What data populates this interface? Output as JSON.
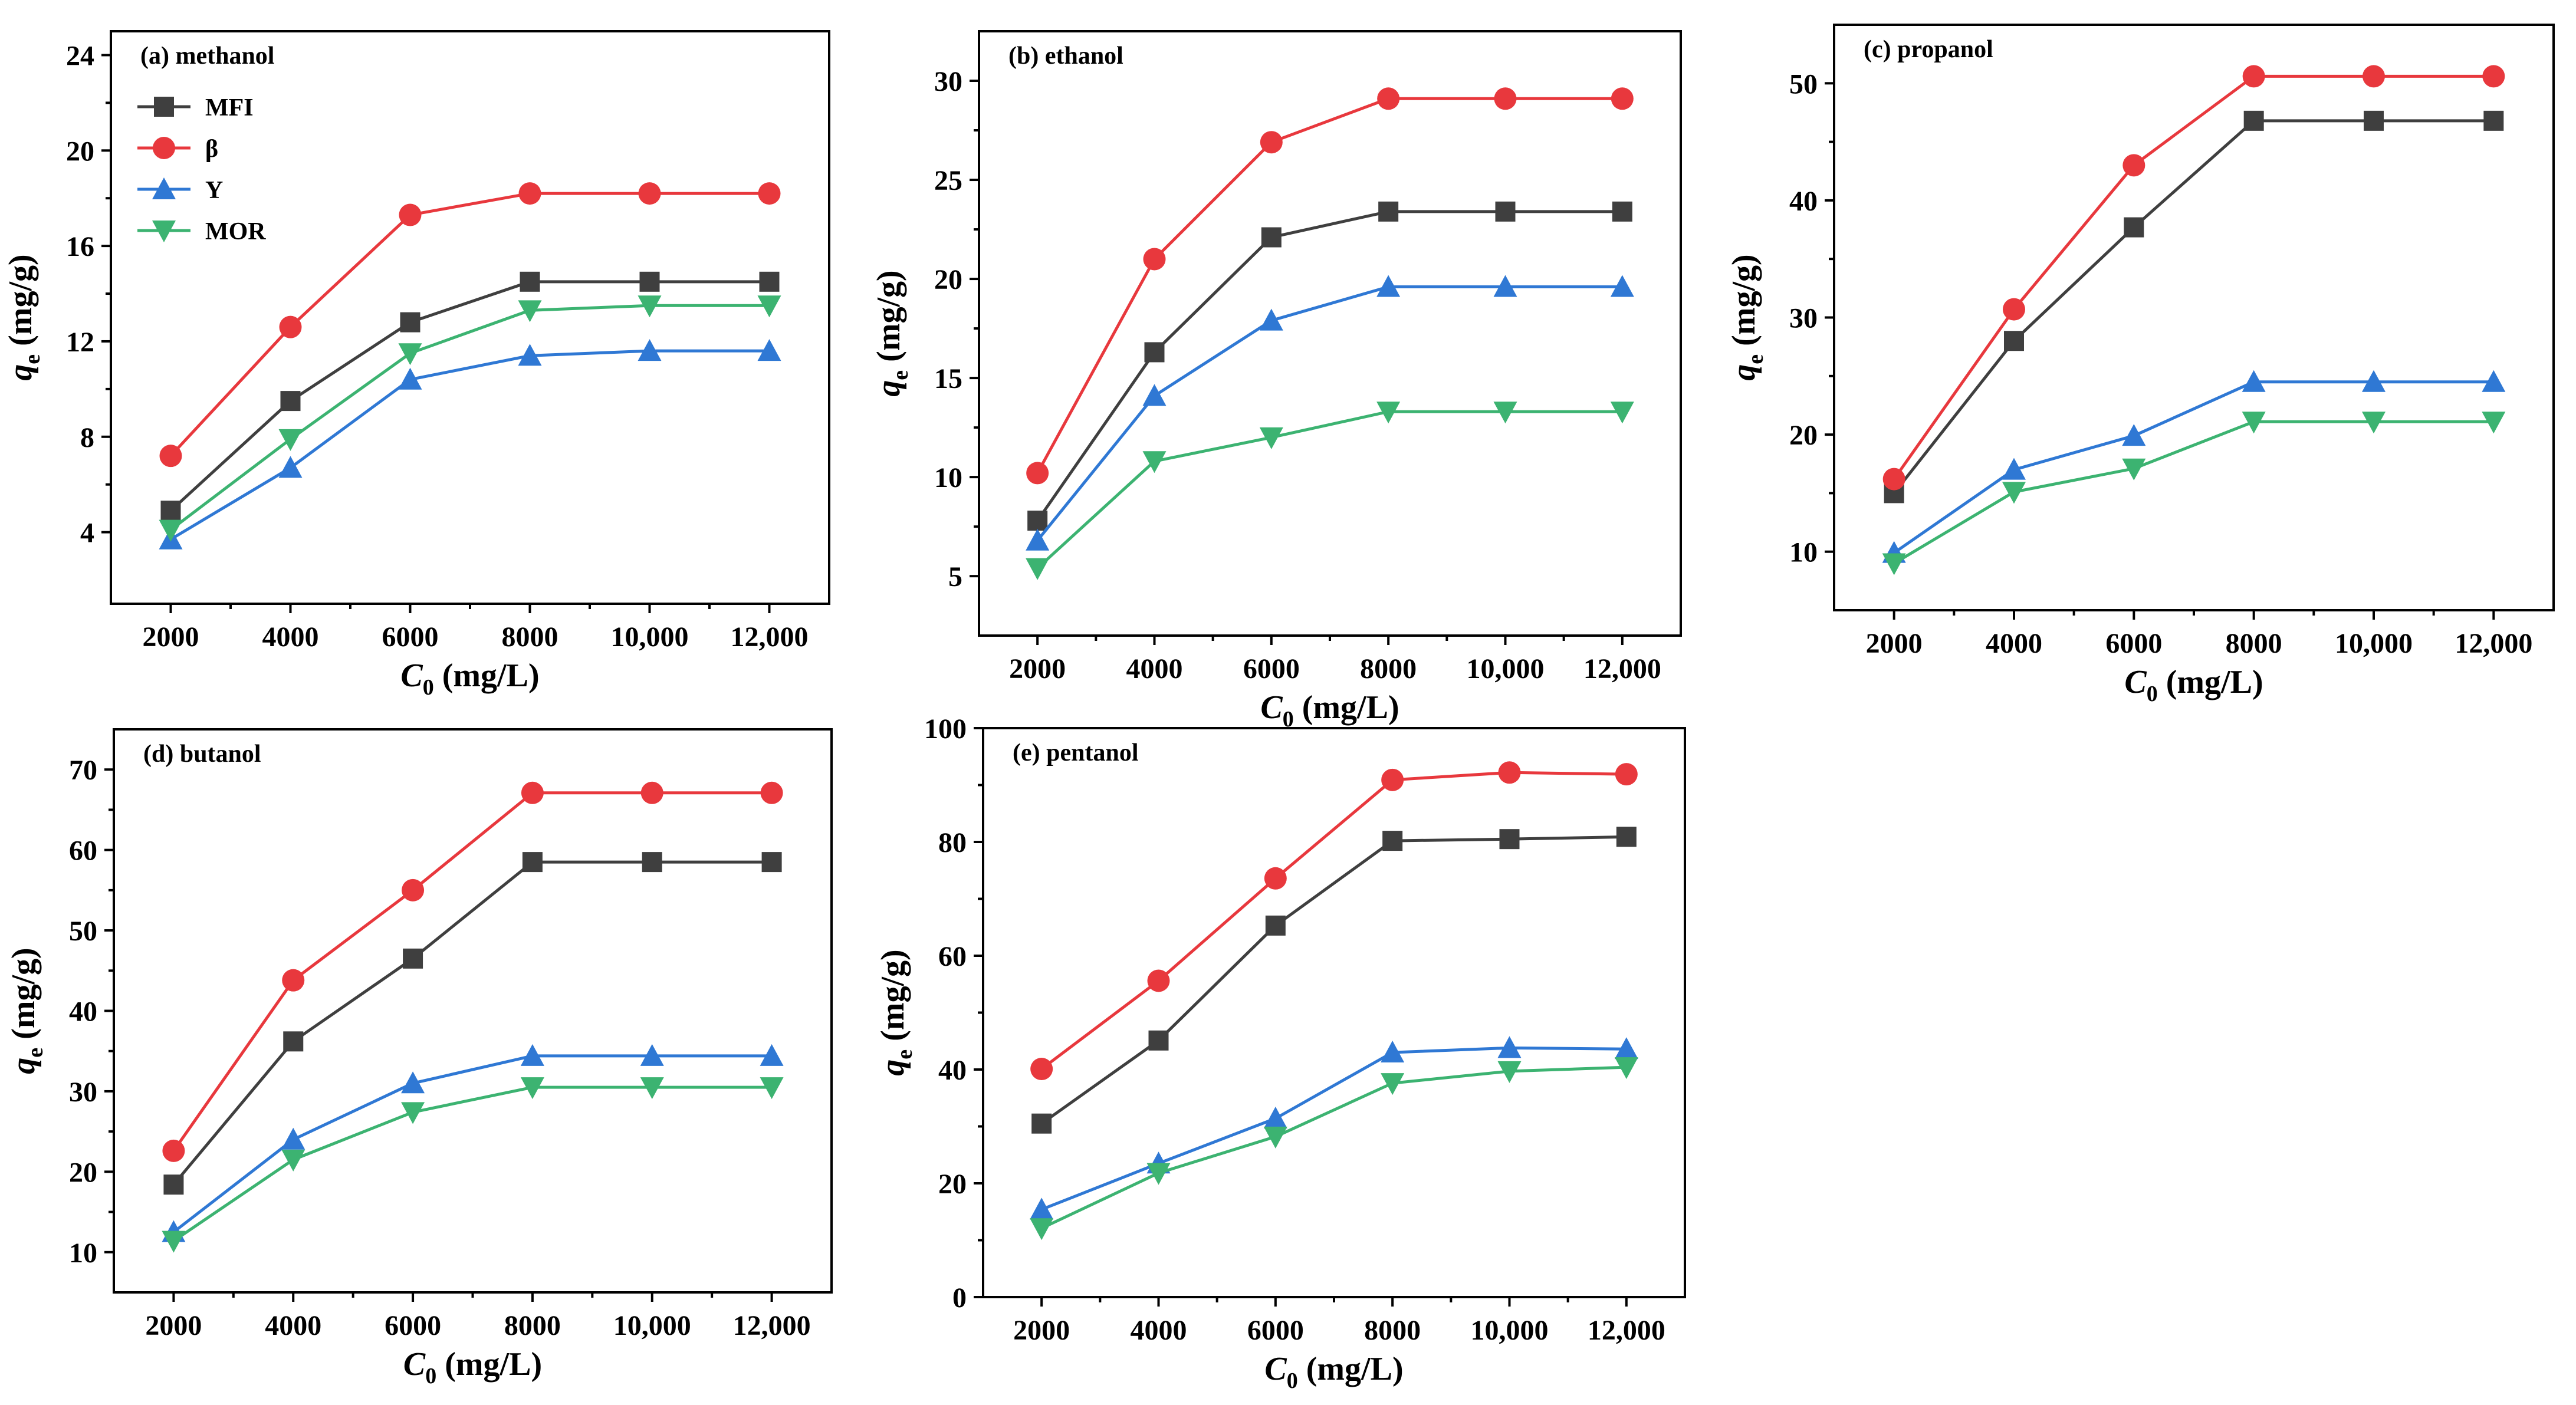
{
  "legend": [
    "MFI",
    "β",
    "Y",
    "MOR"
  ],
  "series_colors": {
    "MFI": "#3f3f3f",
    "β": "#e8383d",
    "Y": "#2f78d4",
    "MOR": "#3cb371"
  },
  "series_markers": {
    "MFI": "square",
    "β": "circle",
    "Y": "triangle-up",
    "MOR": "triangle-down"
  },
  "chart_data": [
    {
      "type": "line",
      "title": "(a) methanol",
      "xlabel_var": "C",
      "xlabel_sub": "0",
      "xlabel_unit": " (mg/L)",
      "ylabel_var": "q",
      "ylabel_sub": "e",
      "ylabel_unit": " (mg/g)",
      "xlim": [
        1000,
        13000
      ],
      "ylim": [
        1,
        25
      ],
      "x": [
        2000,
        4000,
        6000,
        8000,
        10000,
        12000
      ],
      "x_tick_labels": [
        "2000",
        "4000",
        "6000",
        "8000",
        "10,000",
        "12,000"
      ],
      "y_ticks": [
        4,
        8,
        12,
        16,
        20,
        24
      ],
      "y_tick_labels": [
        "4",
        "8",
        "12",
        "16",
        "20",
        "24"
      ],
      "series": [
        {
          "name": "MFI",
          "values": [
            4.9,
            9.5,
            12.8,
            14.5,
            14.5,
            14.5
          ]
        },
        {
          "name": "β",
          "values": [
            7.2,
            12.6,
            17.3,
            18.2,
            18.2,
            18.2
          ]
        },
        {
          "name": "Y",
          "values": [
            3.7,
            6.7,
            10.4,
            11.4,
            11.6,
            11.6
          ]
        },
        {
          "name": "MOR",
          "values": [
            4.1,
            7.9,
            11.5,
            13.3,
            13.5,
            13.5
          ]
        }
      ]
    },
    {
      "type": "line",
      "title": "(b) ethanol",
      "xlabel_var": "C",
      "xlabel_sub": "0",
      "xlabel_unit": " (mg/L)",
      "ylabel_var": "q",
      "ylabel_sub": "e",
      "ylabel_unit": " (mg/g)",
      "xlim": [
        1000,
        13000
      ],
      "ylim": [
        2,
        32.5
      ],
      "x": [
        2000,
        4000,
        6000,
        8000,
        10000,
        12000
      ],
      "x_tick_labels": [
        "2000",
        "4000",
        "6000",
        "8000",
        "10,000",
        "12,000"
      ],
      "y_ticks": [
        5,
        10,
        15,
        20,
        25,
        30
      ],
      "y_tick_labels": [
        "5",
        "10",
        "15",
        "20",
        "25",
        "30"
      ],
      "series": [
        {
          "name": "MFI",
          "values": [
            7.8,
            16.3,
            22.1,
            23.4,
            23.4,
            23.4
          ]
        },
        {
          "name": "β",
          "values": [
            10.2,
            21.0,
            26.9,
            29.1,
            29.1,
            29.1
          ]
        },
        {
          "name": "Y",
          "values": [
            6.8,
            14.1,
            17.9,
            19.6,
            19.6,
            19.6
          ]
        },
        {
          "name": "MOR",
          "values": [
            5.4,
            10.8,
            12.0,
            13.3,
            13.3,
            13.3
          ]
        }
      ]
    },
    {
      "type": "line",
      "title": "(c) propanol",
      "xlabel_var": "C",
      "xlabel_sub": "0",
      "xlabel_unit": " (mg/L)",
      "ylabel_var": "q",
      "ylabel_sub": "e",
      "ylabel_unit": " (mg/g)",
      "xlim": [
        1000,
        13000
      ],
      "ylim": [
        5,
        55
      ],
      "x": [
        2000,
        4000,
        6000,
        8000,
        10000,
        12000
      ],
      "x_tick_labels": [
        "2000",
        "4000",
        "6000",
        "8000",
        "10,000",
        "12,000"
      ],
      "y_ticks": [
        10,
        20,
        30,
        40,
        50
      ],
      "y_tick_labels": [
        "10",
        "20",
        "30",
        "40",
        "50"
      ],
      "series": [
        {
          "name": "MFI",
          "values": [
            15.0,
            28.0,
            37.7,
            46.8,
            46.8,
            46.8
          ]
        },
        {
          "name": "β",
          "values": [
            16.2,
            30.7,
            43.0,
            50.6,
            50.6,
            50.6
          ]
        },
        {
          "name": "Y",
          "values": [
            9.9,
            17.0,
            19.9,
            24.5,
            24.5,
            24.5
          ]
        },
        {
          "name": "MOR",
          "values": [
            9.0,
            15.1,
            17.1,
            21.1,
            21.1,
            21.1
          ]
        }
      ]
    },
    {
      "type": "line",
      "title": "(d) butanol",
      "xlabel_var": "C",
      "xlabel_sub": "0",
      "xlabel_unit": " (mg/L)",
      "ylabel_var": "q",
      "ylabel_sub": "e",
      "ylabel_unit": " (mg/g)",
      "xlim": [
        1000,
        13000
      ],
      "ylim": [
        5,
        75
      ],
      "x": [
        2000,
        4000,
        6000,
        8000,
        10000,
        12000
      ],
      "x_tick_labels": [
        "2000",
        "4000",
        "6000",
        "8000",
        "10,000",
        "12,000"
      ],
      "y_ticks": [
        10,
        20,
        30,
        40,
        50,
        60,
        70
      ],
      "y_tick_labels": [
        "10",
        "20",
        "30",
        "40",
        "50",
        "60",
        "70"
      ],
      "series": [
        {
          "name": "MFI",
          "values": [
            18.4,
            36.2,
            46.5,
            58.5,
            58.5,
            58.5
          ]
        },
        {
          "name": "β",
          "values": [
            22.6,
            43.8,
            55.0,
            67.1,
            67.1,
            67.1
          ]
        },
        {
          "name": "Y",
          "values": [
            12.5,
            24.0,
            31.0,
            34.4,
            34.4,
            34.4
          ]
        },
        {
          "name": "MOR",
          "values": [
            11.4,
            21.5,
            27.4,
            30.5,
            30.5,
            30.5
          ]
        }
      ]
    },
    {
      "type": "line",
      "title": "(e) pentanol",
      "xlabel_var": "C",
      "xlabel_sub": "0",
      "xlabel_unit": " (mg/L)",
      "ylabel_var": "q",
      "ylabel_sub": "e",
      "ylabel_unit": " (mg/g)",
      "xlim": [
        1000,
        13000
      ],
      "ylim": [
        0,
        100
      ],
      "x": [
        2000,
        4000,
        6000,
        8000,
        10000,
        12000
      ],
      "x_tick_labels": [
        "2000",
        "4000",
        "6000",
        "8000",
        "10,000",
        "12,000"
      ],
      "y_ticks": [
        0,
        20,
        40,
        60,
        80,
        100
      ],
      "y_tick_labels": [
        "0",
        "20",
        "40",
        "60",
        "80",
        "100"
      ],
      "series": [
        {
          "name": "MFI",
          "values": [
            30.5,
            45.1,
            65.3,
            80.2,
            80.5,
            80.9
          ]
        },
        {
          "name": "β",
          "values": [
            40.1,
            55.6,
            73.6,
            90.9,
            92.2,
            91.9
          ]
        },
        {
          "name": "Y",
          "values": [
            15.4,
            23.5,
            31.4,
            43.0,
            43.8,
            43.6
          ]
        },
        {
          "name": "MOR",
          "values": [
            12.1,
            21.8,
            28.2,
            37.6,
            39.7,
            40.4
          ]
        }
      ]
    }
  ]
}
